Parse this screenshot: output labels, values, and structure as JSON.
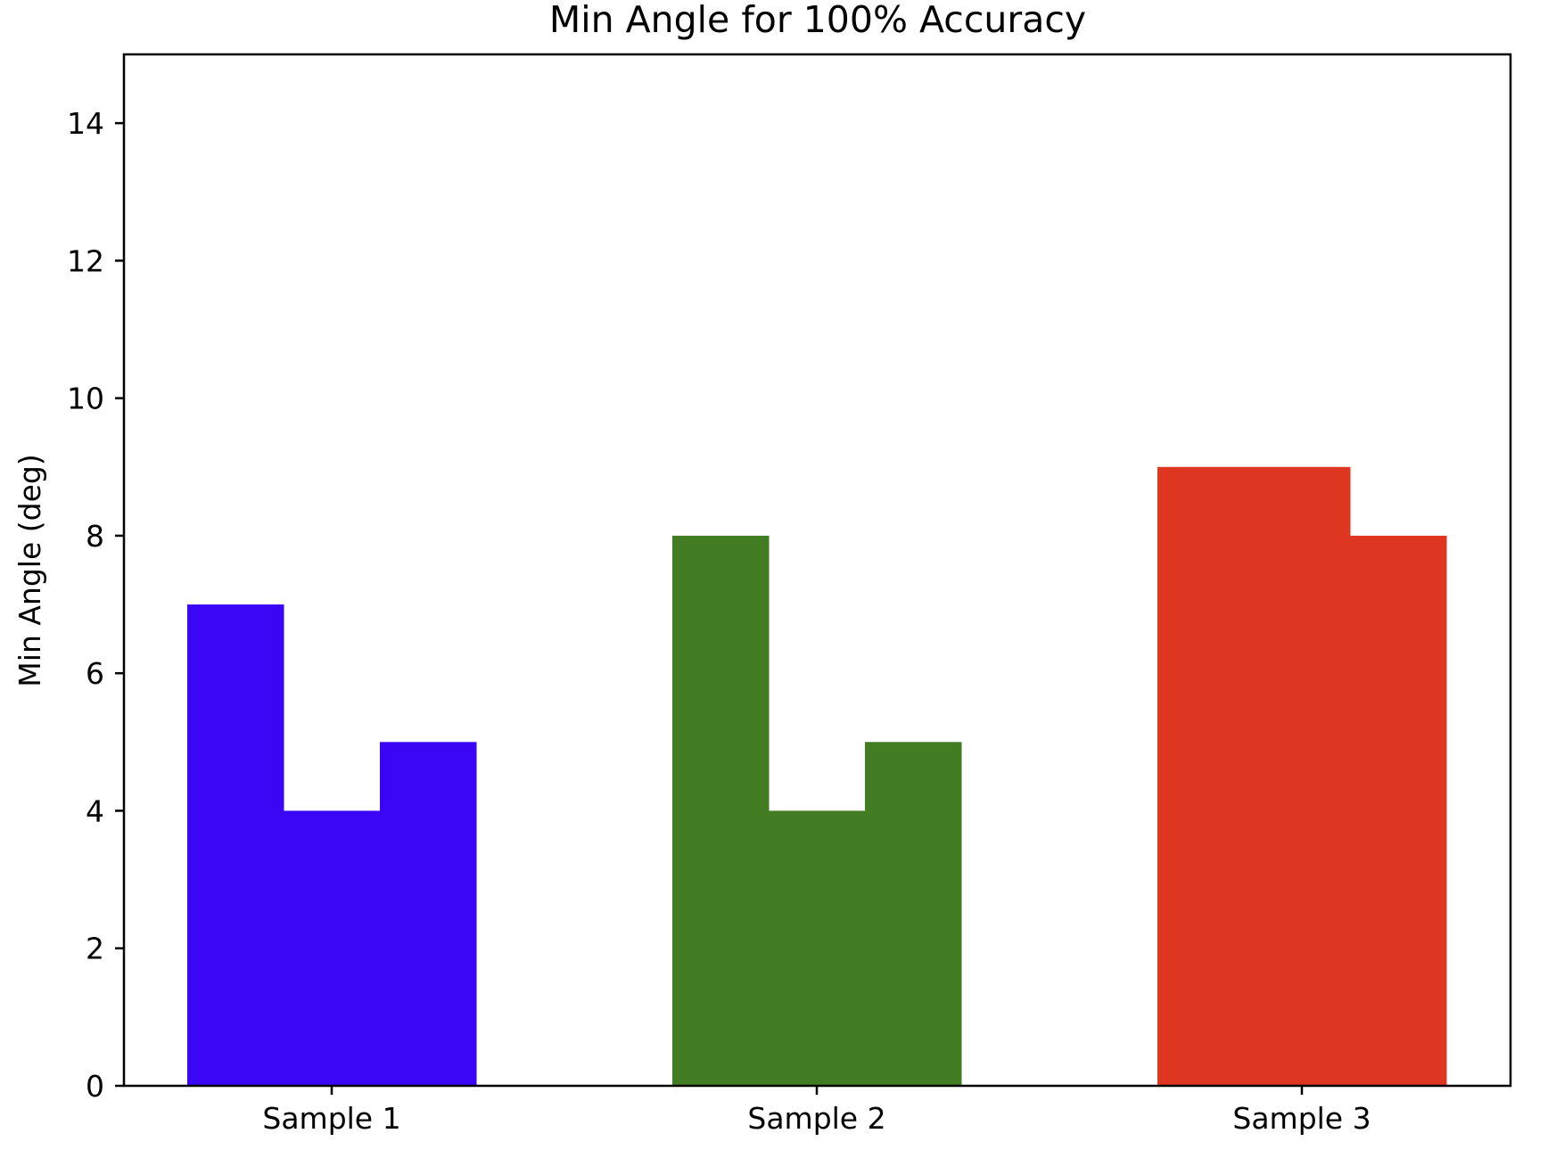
{
  "chart_data": {
    "type": "bar",
    "title": "Min Angle for 100% Accuracy",
    "xlabel": "",
    "ylabel": "Min Angle (deg)",
    "categories": [
      "Sample 1",
      "Sample 2",
      "Sample 3"
    ],
    "bars_per_category": 3,
    "category_colors": [
      "#3a06f5",
      "#427d24",
      "#df3622"
    ],
    "values": [
      [
        7,
        4,
        5
      ],
      [
        8,
        4,
        5
      ],
      [
        9,
        9,
        8
      ]
    ],
    "ylim": [
      0,
      15
    ],
    "yticks": [
      0,
      2,
      4,
      6,
      8,
      10,
      12,
      14
    ],
    "grid": false,
    "legend": "none"
  }
}
